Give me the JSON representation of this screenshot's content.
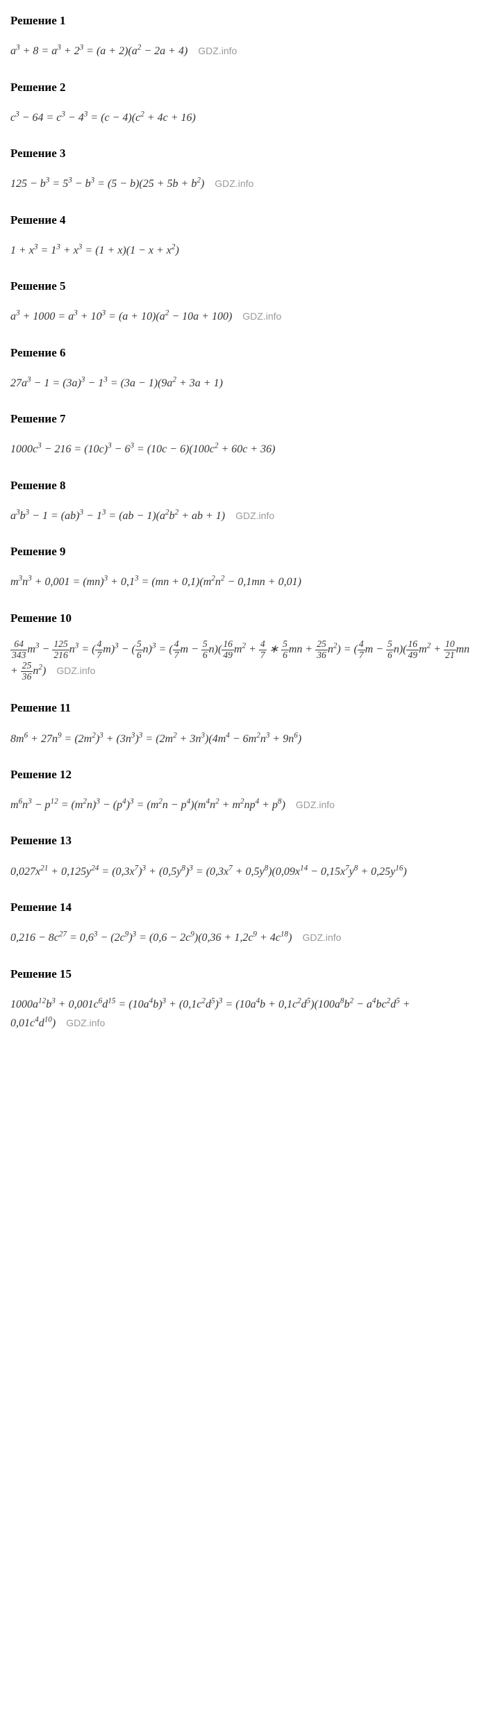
{
  "watermark": "GDZ.info",
  "sections": [
    {
      "heading": "Решение 1",
      "formula_html": "<i>a</i><sup>3</sup> + 8 = <i>a</i><sup>3</sup> + 2<sup>3</sup> = (<i>a</i> + 2)(<i>a</i><sup>2</sup> − 2<i>a</i> + 4)",
      "has_watermark": true
    },
    {
      "heading": "Решение 2",
      "formula_html": "c<sup>3</sup> − 64 = c<sup>3</sup> − 4<sup>3</sup> = (<i>c</i> − 4)(<i>c</i><sup>2</sup> + 4<i>c</i> + 16)",
      "has_watermark": false
    },
    {
      "heading": "Решение 3",
      "formula_html": "125 − <i>b</i><sup>3</sup> = 5<sup>3</sup> − <i>b</i><sup>3</sup> = (5 − <i>b</i>)(25 + 5<i>b</i> + <i>b</i><sup>2</sup>)",
      "has_watermark": true
    },
    {
      "heading": "Решение 4",
      "formula_html": "1 + <i>x</i><sup>3</sup> = 1<sup>3</sup> + <i>x</i><sup>3</sup> = (1 + <i>x</i>)(1 − <i>x</i> + <i>x</i><sup>2</sup>)",
      "has_watermark": false
    },
    {
      "heading": "Решение 5",
      "formula_html": "<i>a</i><sup>3</sup> + 1000 = <i>a</i><sup>3</sup> + 10<sup>3</sup> = (<i>a</i> + 10)(<i>a</i><sup>2</sup> − 10<i>a</i> + 100)",
      "has_watermark": true
    },
    {
      "heading": "Решение 6",
      "formula_html": "27<i>a</i><sup>3</sup> − 1 = (3<i>a</i>)<sup>3</sup> − 1<sup>3</sup> = (3<i>a</i> − 1)(9<i>a</i><sup>2</sup> + 3<i>a</i> + 1)",
      "has_watermark": false
    },
    {
      "heading": "Решение 7",
      "formula_html": "1000<i>c</i><sup>3</sup> − 216 = (10<i>c</i>)<sup>3</sup> − 6<sup>3</sup> = (10<i>c</i> − 6)(100<i>c</i><sup>2</sup> + 60<i>c</i> + 36)",
      "has_watermark": false
    },
    {
      "heading": "Решение 8",
      "formula_html": "<i>a</i><sup>3</sup><i>b</i><sup>3</sup> − 1 = (<i>ab</i>)<sup>3</sup> − 1<sup>3</sup> = (<i>ab</i> − 1)(<i>a</i><sup>2</sup><i>b</i><sup>2</sup> + <i>ab</i> + 1)",
      "has_watermark": true
    },
    {
      "heading": "Решение 9",
      "formula_html": "<i>m</i><sup>3</sup><i>n</i><sup>3</sup> + 0,001 = (<i>mn</i>)<sup>3</sup> + 0,1<sup>3</sup> = (<i>mn</i> + 0,1)(<i>m</i><sup>2</sup><i>n</i><sup>2</sup> − 0,1<i>mn</i> + 0,01)",
      "has_watermark": false
    },
    {
      "heading": "Решение 10",
      "formula_html": "<span class=\"frac\"><span class=\"num\">64</span><span class=\"den\">343</span></span><i>m</i><sup>3</sup> − <span class=\"frac\"><span class=\"num\">125</span><span class=\"den\">216</span></span><i>n</i><sup>3</sup> = (<span class=\"frac\"><span class=\"num\">4</span><span class=\"den\">7</span></span><i>m</i>)<sup>3</sup> − (<span class=\"frac\"><span class=\"num\">5</span><span class=\"den\">6</span></span><i>n</i>)<sup>3</sup> = (<span class=\"frac\"><span class=\"num\">4</span><span class=\"den\">7</span></span><i>m</i> − <span class=\"frac\"><span class=\"num\">5</span><span class=\"den\">6</span></span><i>n</i>)(<span class=\"frac\"><span class=\"num\">16</span><span class=\"den\">49</span></span><i>m</i><sup>2</sup> + <span class=\"frac\"><span class=\"num\">4</span><span class=\"den\">7</span></span> ∗ <span class=\"frac\"><span class=\"num\">5</span><span class=\"den\">6</span></span><i>mn</i> + <span class=\"frac\"><span class=\"num\">25</span><span class=\"den\">36</span></span><i>n</i><sup>2</sup>) = (<span class=\"frac\"><span class=\"num\">4</span><span class=\"den\">7</span></span><i>m</i> − <span class=\"frac\"><span class=\"num\">5</span><span class=\"den\">6</span></span><i>n</i>)(<span class=\"frac\"><span class=\"num\">16</span><span class=\"den\">49</span></span><i>m</i><sup>2</sup> + <span class=\"frac\"><span class=\"num\">10</span><span class=\"den\">21</span></span><i>mn</i> + <span class=\"frac\"><span class=\"num\">25</span><span class=\"den\">36</span></span><i>n</i><sup>2</sup>)",
      "has_watermark": true
    },
    {
      "heading": "Решение 11",
      "formula_html": "8<i>m</i><sup>6</sup> + 27<i>n</i><sup>9</sup> = (2<i>m</i><sup>2</sup>)<sup>3</sup> + (3<i>n</i><sup>3</sup>)<sup>3</sup> = (2<i>m</i><sup>2</sup> + 3<i>n</i><sup>3</sup>)(4<i>m</i><sup>4</sup> − 6<i>m</i><sup>2</sup><i>n</i><sup>3</sup> + 9<i>n</i><sup>6</sup>)",
      "has_watermark": false
    },
    {
      "heading": "Решение 12",
      "formula_html": "<i>m</i><sup>6</sup><i>n</i><sup>3</sup> − <i>p</i><sup>12</sup> = (<i>m</i><sup>2</sup><i>n</i>)<sup>3</sup> − (<i>p</i><sup>4</sup>)<sup>3</sup> = (<i>m</i><sup>2</sup><i>n</i> − <i>p</i><sup>4</sup>)(<i>m</i><sup>4</sup><i>n</i><sup>2</sup> + <i>m</i><sup>2</sup><i>np</i><sup>4</sup> + <i>p</i><sup>8</sup>)",
      "has_watermark": true
    },
    {
      "heading": "Решение 13",
      "formula_html": "0,027<i>x</i><sup>21</sup> + 0,125<i>y</i><sup>24</sup> = (0,3<i>x</i><sup>7</sup>)<sup>3</sup> + (0,5<i>y</i><sup>8</sup>)<sup>3</sup> = (0,3<i>x</i><sup>7</sup> + 0,5<i>y</i><sup>8</sup>)(0,09<i>x</i><sup>14</sup> − 0,15<i>x</i><sup>7</sup><i>y</i><sup>8</sup> + 0,25<i>y</i><sup>16</sup>)",
      "has_watermark": false
    },
    {
      "heading": "Решение 14",
      "formula_html": "0,216 − 8<i>c</i><sup>27</sup> = 0,6<sup>3</sup> − (2<i>c</i><sup>9</sup>)<sup>3</sup> = (0,6 − 2<i>c</i><sup>9</sup>)(0,36 + 1,2<i>c</i><sup>9</sup> + 4<i>c</i><sup>18</sup>)",
      "has_watermark": true
    },
    {
      "heading": "Решение 15",
      "formula_html": "1000<i>a</i><sup>12</sup><i>b</i><sup>3</sup> + 0,001<i>c</i><sup>6</sup><i>d</i><sup>15</sup> = (10<i>a</i><sup>4</sup><i>b</i>)<sup>3</sup> + (0,1<i>c</i><sup>2</sup><i>d</i><sup>5</sup>)<sup>3</sup> = (10<i>a</i><sup>4</sup><i>b</i> + 0,1<i>c</i><sup>2</sup><i>d</i><sup>5</sup>)(100<i>a</i><sup>8</sup><i>b</i><sup>2</sup> − <i>a</i><sup>4</sup><i>bc</i><sup>2</sup><i>d</i><sup>5</sup> + 0,01<i>c</i><sup>4</sup><i>d</i><sup>10</sup>)",
      "has_watermark": true
    }
  ],
  "styling": {
    "heading_fontsize": 17,
    "heading_fontweight": "bold",
    "formula_fontsize": 16,
    "formula_fontstyle": "italic",
    "background_color": "#ffffff",
    "text_color": "#000000",
    "formula_color": "#333333",
    "watermark_color": "#999999",
    "watermark_fontsize": 14,
    "section_spacing": 28,
    "body_width": 697,
    "body_padding": "20px 15px"
  }
}
